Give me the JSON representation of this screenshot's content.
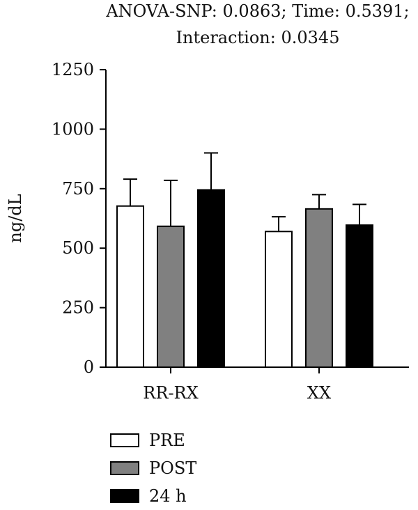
{
  "chart_data": {
    "type": "bar",
    "title_lines": [
      "ANOVA-SNP: 0.0863; Time: 0.5391;",
      "Interaction: 0.0345"
    ],
    "ylabel": "ng/dL",
    "xlabel": "",
    "ylim": [
      0,
      1250
    ],
    "yticks": [
      0,
      250,
      500,
      750,
      1000,
      1250
    ],
    "categories": [
      "RR-RX",
      "XX"
    ],
    "series": [
      {
        "name": "PRE",
        "color": "#ffffff",
        "values": [
          677,
          570
        ],
        "error": [
          113,
          62
        ]
      },
      {
        "name": "POST",
        "color": "#808080",
        "values": [
          592,
          665
        ],
        "error": [
          193,
          60
        ]
      },
      {
        "name": "24 h",
        "color": "#000000",
        "values": [
          745,
          597
        ],
        "error": [
          155,
          87
        ]
      }
    ],
    "legend_position": "bottom-left",
    "grid": false
  }
}
